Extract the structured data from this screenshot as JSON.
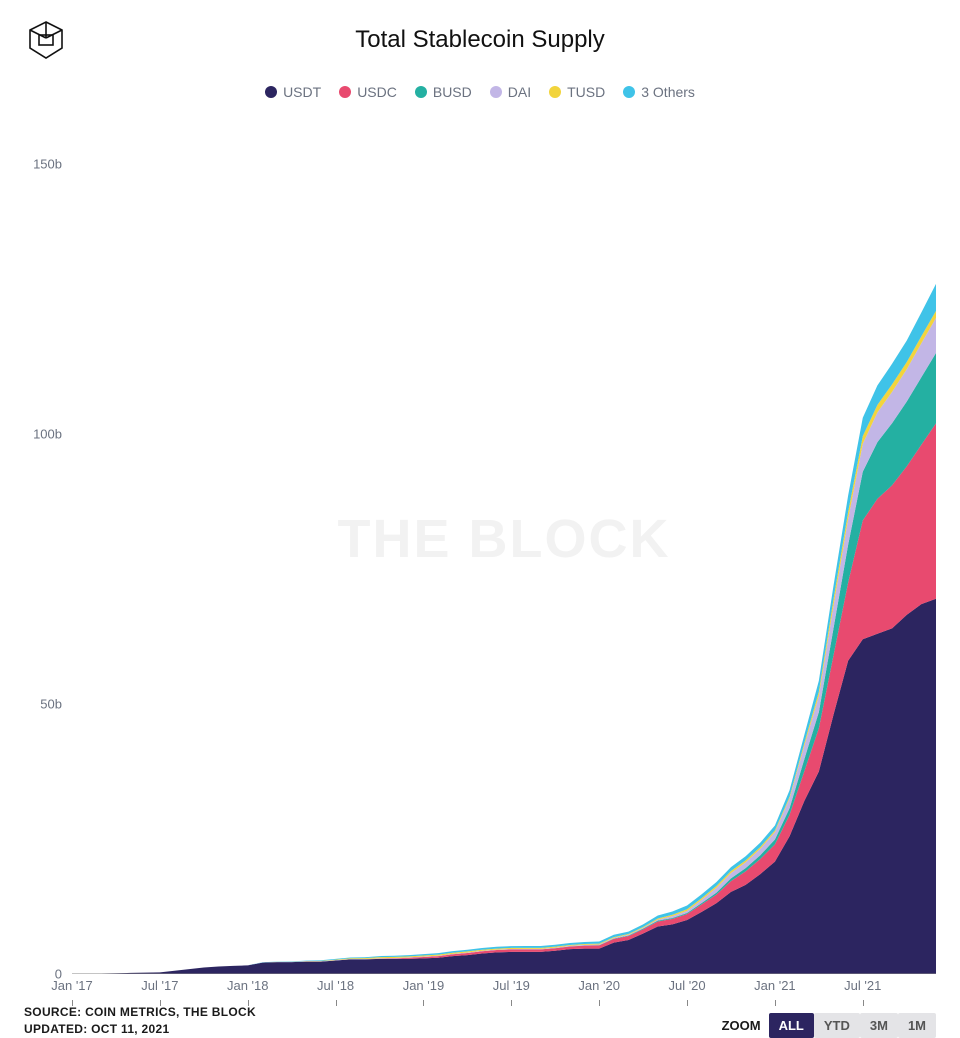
{
  "title": "Total Stablecoin Supply",
  "watermark": "THE BLOCK",
  "divider_color": "#b030d8",
  "legend": [
    {
      "label": "USDT",
      "color": "#2c2560"
    },
    {
      "label": "USDC",
      "color": "#e84a6f"
    },
    {
      "label": "BUSD",
      "color": "#24b0a2"
    },
    {
      "label": "DAI",
      "color": "#c2b6e6"
    },
    {
      "label": "TUSD",
      "color": "#f2d43c"
    },
    {
      "label": "3 Others",
      "color": "#3fc3e8"
    }
  ],
  "chart": {
    "type": "stacked-area",
    "background_color": "#ffffff",
    "yaxis": {
      "min": 0,
      "max": 160,
      "ticks": [
        0,
        50,
        100,
        150
      ],
      "tick_labels": [
        "0",
        "50b",
        "100b",
        "150b"
      ],
      "label_fontsize": 13,
      "label_color": "#6b7280"
    },
    "xaxis": {
      "min": 0,
      "max": 59,
      "tick_positions": [
        0,
        6,
        12,
        18,
        24,
        30,
        36,
        42,
        48,
        54
      ],
      "tick_labels": [
        "Jan '17",
        "Jul '17",
        "Jan '18",
        "Jul '18",
        "Jan '19",
        "Jul '19",
        "Jan '20",
        "Jul '20",
        "Jan '21",
        "Jul '21"
      ],
      "label_fontsize": 13,
      "label_color": "#6b7280"
    },
    "series": [
      {
        "name": "USDT",
        "color": "#2c2560",
        "values": [
          0.1,
          0.1,
          0.1,
          0.15,
          0.2,
          0.25,
          0.3,
          0.6,
          0.9,
          1.2,
          1.4,
          1.5,
          1.6,
          2.1,
          2.2,
          2.2,
          2.3,
          2.3,
          2.5,
          2.7,
          2.7,
          2.8,
          2.8,
          2.8,
          2.9,
          3.0,
          3.3,
          3.5,
          3.8,
          4.0,
          4.1,
          4.1,
          4.1,
          4.3,
          4.6,
          4.7,
          4.7,
          5.8,
          6.3,
          7.5,
          8.8,
          9.2,
          10.0,
          11.5,
          13.1,
          15.2,
          16.5,
          18.5,
          20.8,
          25.5,
          32.0,
          37.5,
          48.0,
          58.0,
          62.0,
          63.0,
          64.0,
          66.5,
          68.5,
          69.5
        ]
      },
      {
        "name": "USDC",
        "color": "#e84a6f",
        "values": [
          0,
          0,
          0,
          0,
          0,
          0,
          0,
          0,
          0,
          0,
          0,
          0,
          0,
          0,
          0,
          0,
          0,
          0,
          0,
          0,
          0,
          0.05,
          0.1,
          0.2,
          0.25,
          0.3,
          0.35,
          0.4,
          0.42,
          0.44,
          0.46,
          0.47,
          0.47,
          0.48,
          0.5,
          0.55,
          0.6,
          0.7,
          0.73,
          0.78,
          0.92,
          1.0,
          1.1,
          1.4,
          1.6,
          2.0,
          2.5,
          2.8,
          3.2,
          4.0,
          5.5,
          8.0,
          11.0,
          14.5,
          22.0,
          25.0,
          26.5,
          27.5,
          29.5,
          32.5
        ]
      },
      {
        "name": "BUSD",
        "color": "#24b0a2",
        "values": [
          0,
          0,
          0,
          0,
          0,
          0,
          0,
          0,
          0,
          0,
          0,
          0,
          0,
          0,
          0,
          0,
          0,
          0,
          0,
          0,
          0,
          0,
          0,
          0,
          0,
          0,
          0,
          0,
          0,
          0,
          0,
          0,
          0,
          0.01,
          0.02,
          0.03,
          0.05,
          0.07,
          0.1,
          0.14,
          0.16,
          0.18,
          0.2,
          0.25,
          0.35,
          0.5,
          0.6,
          0.7,
          0.9,
          1.2,
          2.2,
          3.0,
          5.0,
          7.0,
          9.0,
          10.5,
          11.5,
          12.0,
          12.5,
          13.0
        ]
      },
      {
        "name": "DAI",
        "color": "#c2b6e6",
        "values": [
          0,
          0,
          0,
          0,
          0,
          0,
          0,
          0,
          0,
          0,
          0,
          0,
          0.01,
          0.02,
          0.03,
          0.04,
          0.05,
          0.06,
          0.06,
          0.07,
          0.07,
          0.07,
          0.07,
          0.07,
          0.08,
          0.08,
          0.08,
          0.08,
          0.08,
          0.08,
          0.08,
          0.08,
          0.09,
          0.1,
          0.1,
          0.12,
          0.12,
          0.13,
          0.13,
          0.14,
          0.2,
          0.35,
          0.4,
          0.6,
          0.9,
          1.0,
          1.1,
          1.2,
          1.4,
          1.8,
          2.5,
          3.0,
          4.2,
          4.8,
          5.2,
          5.5,
          5.8,
          6.0,
          6.3,
          6.5
        ]
      },
      {
        "name": "TUSD",
        "color": "#f2d43c",
        "values": [
          0,
          0,
          0,
          0,
          0,
          0,
          0,
          0,
          0,
          0,
          0,
          0,
          0,
          0,
          0.02,
          0.04,
          0.05,
          0.08,
          0.1,
          0.14,
          0.17,
          0.2,
          0.2,
          0.2,
          0.2,
          0.2,
          0.2,
          0.2,
          0.2,
          0.19,
          0.19,
          0.18,
          0.17,
          0.17,
          0.16,
          0.16,
          0.15,
          0.14,
          0.14,
          0.14,
          0.2,
          0.25,
          0.28,
          0.3,
          0.35,
          0.38,
          0.35,
          0.32,
          0.3,
          0.32,
          0.5,
          0.8,
          1.2,
          1.3,
          1.4,
          1.4,
          1.4,
          1.3,
          1.3,
          1.3
        ]
      },
      {
        "name": "3 Others",
        "color": "#3fc3e8",
        "values": [
          0,
          0,
          0,
          0,
          0,
          0,
          0,
          0,
          0,
          0,
          0,
          0,
          0,
          0.05,
          0.05,
          0.06,
          0.08,
          0.1,
          0.14,
          0.14,
          0.17,
          0.2,
          0.2,
          0.22,
          0.25,
          0.28,
          0.3,
          0.3,
          0.32,
          0.33,
          0.34,
          0.35,
          0.35,
          0.35,
          0.36,
          0.36,
          0.4,
          0.42,
          0.45,
          0.5,
          0.55,
          0.6,
          0.7,
          0.72,
          0.72,
          0.72,
          0.75,
          0.8,
          0.9,
          1.2,
          1.5,
          2.0,
          2.5,
          3.0,
          3.4,
          3.6,
          3.8,
          4.0,
          4.4,
          5.0
        ]
      }
    ]
  },
  "source_line1": "SOURCE: COIN METRICS, THE BLOCK",
  "source_line2": "UPDATED: OCT 11, 2021",
  "zoom": {
    "label": "ZOOM",
    "buttons": [
      {
        "label": "ALL",
        "active": true
      },
      {
        "label": "YTD",
        "active": false
      },
      {
        "label": "3M",
        "active": false
      },
      {
        "label": "1M",
        "active": false
      }
    ],
    "active_bg": "#2c2560",
    "active_fg": "#ffffff",
    "inactive_bg": "#e4e4e7",
    "inactive_fg": "#555555"
  }
}
